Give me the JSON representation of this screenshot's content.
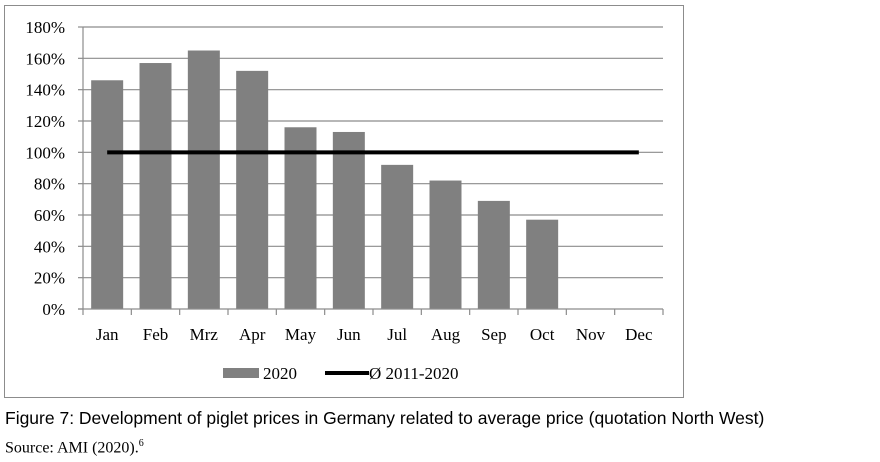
{
  "chart_data": {
    "type": "bar",
    "categories": [
      "Jan",
      "Feb",
      "Mrz",
      "Apr",
      "May",
      "Jun",
      "Jul",
      "Aug",
      "Sep",
      "Oct",
      "Nov",
      "Dec"
    ],
    "series": [
      {
        "name": "2020",
        "type": "bar",
        "color": "#808080",
        "values": [
          146,
          157,
          165,
          152,
          116,
          113,
          92,
          82,
          69,
          57,
          null,
          null
        ]
      },
      {
        "name": "Ø 2011-2020",
        "type": "line",
        "color": "#000000",
        "values": [
          100,
          100,
          100,
          100,
          100,
          100,
          100,
          100,
          100,
          100,
          100,
          100
        ]
      }
    ],
    "y_unit": "%",
    "yticks": [
      "0%",
      "20%",
      "40%",
      "60%",
      "80%",
      "100%",
      "120%",
      "140%",
      "160%",
      "180%"
    ],
    "ylim": [
      0,
      180
    ],
    "grid": true,
    "legend_position": "bottom"
  },
  "caption": "Figure 7: Development of piglet prices in Germany related to average price (quotation North West)",
  "source": {
    "text": "Source: AMI (2020).",
    "footnote": "6"
  }
}
